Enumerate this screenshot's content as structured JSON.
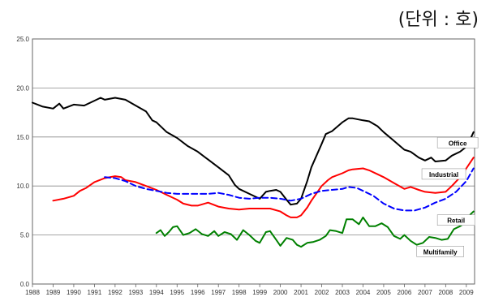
{
  "unit_note": "(단위 : 호)",
  "chart_data": {
    "type": "line",
    "ylim": [
      0,
      25
    ],
    "xlim": [
      1988,
      2009.4
    ],
    "y_ticks": [
      "0.0",
      "5.0",
      "10.0",
      "15.0",
      "20.0",
      "25.0"
    ],
    "x_ticks": [
      "1988",
      "1989",
      "1990",
      "1991",
      "1992",
      "1993",
      "1994",
      "1995",
      "1996",
      "1997",
      "1998",
      "1999",
      "2000",
      "2001",
      "2002",
      "2003",
      "2004",
      "2005",
      "2006",
      "2007",
      "2008",
      "2009"
    ],
    "grid": true,
    "series": [
      {
        "name": "Office",
        "color": "#000000",
        "style": "solid",
        "points": [
          [
            1988,
            18.5
          ],
          [
            1988.5,
            18.1
          ],
          [
            1989,
            17.9
          ],
          [
            1989.3,
            18.4
          ],
          [
            1989.5,
            17.9
          ],
          [
            1990,
            18.3
          ],
          [
            1990.5,
            18.2
          ],
          [
            1991,
            18.7
          ],
          [
            1991.3,
            19.0
          ],
          [
            1991.5,
            18.8
          ],
          [
            1992,
            19.0
          ],
          [
            1992.5,
            18.8
          ],
          [
            1993,
            18.2
          ],
          [
            1993.5,
            17.6
          ],
          [
            1993.8,
            16.7
          ],
          [
            1994,
            16.5
          ],
          [
            1994.5,
            15.5
          ],
          [
            1995,
            14.9
          ],
          [
            1995.5,
            14.1
          ],
          [
            1996,
            13.5
          ],
          [
            1996.5,
            12.7
          ],
          [
            1997,
            11.9
          ],
          [
            1997.5,
            11.1
          ],
          [
            1997.8,
            10.1
          ],
          [
            1998,
            9.7
          ],
          [
            1998.5,
            9.2
          ],
          [
            1999,
            8.7
          ],
          [
            1999.3,
            9.4
          ],
          [
            1999.5,
            9.5
          ],
          [
            1999.8,
            9.6
          ],
          [
            2000,
            9.4
          ],
          [
            2000.3,
            8.6
          ],
          [
            2000.5,
            8.1
          ],
          [
            2000.8,
            8.2
          ],
          [
            2001,
            8.7
          ],
          [
            2001.3,
            10.5
          ],
          [
            2001.5,
            11.9
          ],
          [
            2002,
            14.3
          ],
          [
            2002.2,
            15.3
          ],
          [
            2002.5,
            15.6
          ],
          [
            2003,
            16.5
          ],
          [
            2003.3,
            16.9
          ],
          [
            2003.5,
            16.9
          ],
          [
            2004,
            16.7
          ],
          [
            2004.3,
            16.6
          ],
          [
            2004.7,
            16.1
          ],
          [
            2005,
            15.5
          ],
          [
            2005.5,
            14.6
          ],
          [
            2006,
            13.7
          ],
          [
            2006.3,
            13.5
          ],
          [
            2006.7,
            12.9
          ],
          [
            2007,
            12.6
          ],
          [
            2007.3,
            12.9
          ],
          [
            2007.5,
            12.5
          ],
          [
            2008,
            12.6
          ],
          [
            2008.3,
            13.1
          ],
          [
            2008.7,
            13.5
          ],
          [
            2009,
            14.0
          ],
          [
            2009.2,
            14.8
          ],
          [
            2009.35,
            15.5
          ]
        ]
      },
      {
        "name": "Industrial",
        "color": "#ff0000",
        "style": "solid",
        "points": [
          [
            1989,
            8.5
          ],
          [
            1989.5,
            8.7
          ],
          [
            1990,
            9.0
          ],
          [
            1990.3,
            9.5
          ],
          [
            1990.6,
            9.8
          ],
          [
            1991,
            10.4
          ],
          [
            1991.5,
            10.8
          ],
          [
            1992,
            11.0
          ],
          [
            1992.3,
            10.9
          ],
          [
            1992.5,
            10.6
          ],
          [
            1993,
            10.4
          ],
          [
            1993.5,
            10.0
          ],
          [
            1994,
            9.6
          ],
          [
            1994.5,
            9.1
          ],
          [
            1995,
            8.6
          ],
          [
            1995.3,
            8.2
          ],
          [
            1995.7,
            8.0
          ],
          [
            1996,
            8.0
          ],
          [
            1996.5,
            8.3
          ],
          [
            1997,
            7.9
          ],
          [
            1997.5,
            7.7
          ],
          [
            1998,
            7.6
          ],
          [
            1998.5,
            7.7
          ],
          [
            1999,
            7.7
          ],
          [
            1999.5,
            7.7
          ],
          [
            2000,
            7.4
          ],
          [
            2000.3,
            7.0
          ],
          [
            2000.5,
            6.8
          ],
          [
            2000.8,
            6.8
          ],
          [
            2001,
            7.0
          ],
          [
            2001.3,
            7.8
          ],
          [
            2001.5,
            8.5
          ],
          [
            2002,
            10.0
          ],
          [
            2002.3,
            10.6
          ],
          [
            2002.5,
            10.9
          ],
          [
            2003,
            11.3
          ],
          [
            2003.3,
            11.6
          ],
          [
            2003.5,
            11.7
          ],
          [
            2004,
            11.8
          ],
          [
            2004.3,
            11.6
          ],
          [
            2004.7,
            11.2
          ],
          [
            2005,
            10.9
          ],
          [
            2005.5,
            10.3
          ],
          [
            2006,
            9.7
          ],
          [
            2006.3,
            9.9
          ],
          [
            2006.7,
            9.6
          ],
          [
            2007,
            9.4
          ],
          [
            2007.5,
            9.3
          ],
          [
            2008,
            9.4
          ],
          [
            2008.3,
            10.0
          ],
          [
            2008.7,
            10.9
          ],
          [
            2009,
            11.8
          ],
          [
            2009.35,
            12.9
          ]
        ]
      },
      {
        "name": "Retail",
        "color": "#0000ff",
        "style": "dashed",
        "points": [
          [
            1991.5,
            10.9
          ],
          [
            1992,
            10.8
          ],
          [
            1992.5,
            10.5
          ],
          [
            1993,
            10.0
          ],
          [
            1993.5,
            9.7
          ],
          [
            1994,
            9.5
          ],
          [
            1994.5,
            9.3
          ],
          [
            1995,
            9.2
          ],
          [
            1995.5,
            9.2
          ],
          [
            1996,
            9.2
          ],
          [
            1996.5,
            9.2
          ],
          [
            1997,
            9.3
          ],
          [
            1997.5,
            9.1
          ],
          [
            1998,
            8.8
          ],
          [
            1998.5,
            8.7
          ],
          [
            1999,
            8.8
          ],
          [
            1999.5,
            8.8
          ],
          [
            2000,
            8.7
          ],
          [
            2000.5,
            8.5
          ],
          [
            2001,
            8.7
          ],
          [
            2001.5,
            9.2
          ],
          [
            2002,
            9.5
          ],
          [
            2002.5,
            9.6
          ],
          [
            2003,
            9.7
          ],
          [
            2003.3,
            9.9
          ],
          [
            2003.7,
            9.8
          ],
          [
            2004,
            9.5
          ],
          [
            2004.5,
            9.0
          ],
          [
            2005,
            8.2
          ],
          [
            2005.5,
            7.7
          ],
          [
            2006,
            7.5
          ],
          [
            2006.5,
            7.5
          ],
          [
            2007,
            7.8
          ],
          [
            2007.5,
            8.3
          ],
          [
            2008,
            8.7
          ],
          [
            2008.5,
            9.4
          ],
          [
            2009,
            10.5
          ],
          [
            2009.35,
            11.8
          ]
        ]
      },
      {
        "name": "Multifamily",
        "color": "#008000",
        "style": "solid",
        "points": [
          [
            1994,
            5.2
          ],
          [
            1994.2,
            5.5
          ],
          [
            1994.4,
            4.9
          ],
          [
            1994.6,
            5.3
          ],
          [
            1994.8,
            5.8
          ],
          [
            1995,
            5.9
          ],
          [
            1995.3,
            5.0
          ],
          [
            1995.6,
            5.2
          ],
          [
            1995.9,
            5.6
          ],
          [
            1996.2,
            5.1
          ],
          [
            1996.5,
            4.9
          ],
          [
            1996.8,
            5.4
          ],
          [
            1997,
            4.9
          ],
          [
            1997.3,
            5.3
          ],
          [
            1997.6,
            5.1
          ],
          [
            1997.9,
            4.5
          ],
          [
            1998.2,
            5.5
          ],
          [
            1998.5,
            5.0
          ],
          [
            1998.8,
            4.4
          ],
          [
            1999,
            4.2
          ],
          [
            1999.3,
            5.3
          ],
          [
            1999.5,
            5.4
          ],
          [
            1999.8,
            4.5
          ],
          [
            2000,
            3.9
          ],
          [
            2000.3,
            4.7
          ],
          [
            2000.6,
            4.5
          ],
          [
            2000.8,
            4.0
          ],
          [
            2001,
            3.8
          ],
          [
            2001.3,
            4.2
          ],
          [
            2001.6,
            4.3
          ],
          [
            2001.9,
            4.5
          ],
          [
            2002.2,
            4.9
          ],
          [
            2002.4,
            5.5
          ],
          [
            2002.7,
            5.4
          ],
          [
            2003,
            5.2
          ],
          [
            2003.2,
            6.6
          ],
          [
            2003.5,
            6.6
          ],
          [
            2003.8,
            6.1
          ],
          [
            2004,
            6.8
          ],
          [
            2004.3,
            5.9
          ],
          [
            2004.6,
            5.9
          ],
          [
            2004.9,
            6.2
          ],
          [
            2005.2,
            5.8
          ],
          [
            2005.5,
            4.9
          ],
          [
            2005.8,
            4.6
          ],
          [
            2006,
            5.0
          ],
          [
            2006.3,
            4.4
          ],
          [
            2006.6,
            4.0
          ],
          [
            2006.9,
            4.2
          ],
          [
            2007.2,
            4.8
          ],
          [
            2007.5,
            4.7
          ],
          [
            2007.8,
            4.5
          ],
          [
            2008.1,
            4.6
          ],
          [
            2008.4,
            5.6
          ],
          [
            2008.7,
            5.9
          ],
          [
            2009,
            6.3
          ],
          [
            2009.2,
            7.1
          ],
          [
            2009.35,
            7.4
          ]
        ]
      }
    ],
    "labels": [
      "Office",
      "Industrial",
      "Retail",
      "Multifamily"
    ]
  }
}
